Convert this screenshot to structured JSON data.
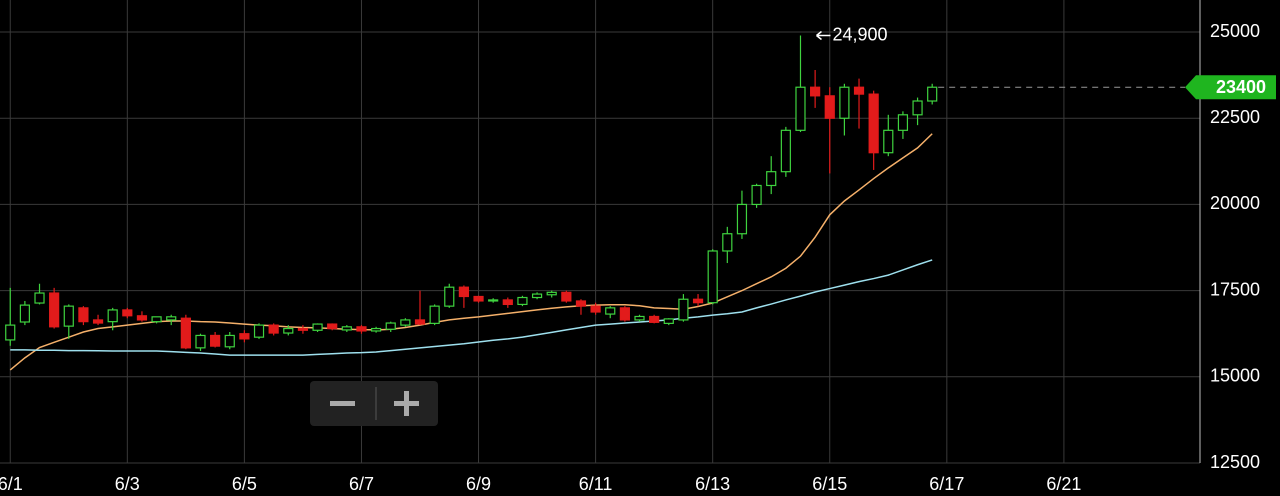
{
  "chart_data": {
    "type": "candlestick",
    "x": [
      0,
      1,
      2,
      3,
      4,
      5,
      6,
      7,
      8,
      9,
      10,
      11,
      12,
      13,
      14,
      15,
      16,
      17,
      18,
      19,
      20,
      21,
      22,
      23,
      24,
      25,
      26,
      27,
      28,
      29,
      30,
      31,
      32,
      33,
      34,
      35,
      36,
      37,
      38,
      39,
      40,
      41,
      42,
      43,
      44,
      45,
      46,
      47,
      48,
      49,
      50,
      51,
      52,
      53,
      54,
      55,
      56,
      57,
      58,
      59,
      60,
      61,
      62,
      63
    ],
    "open": [
      16070,
      16590,
      17140,
      17430,
      16470,
      17000,
      16650,
      16600,
      16940,
      16770,
      16600,
      16650,
      16700,
      15840,
      16200,
      15870,
      16250,
      16150,
      16500,
      16270,
      16400,
      16350,
      16530,
      16360,
      16450,
      16330,
      16380,
      16500,
      16650,
      16550,
      17050,
      17600,
      17330,
      17200,
      17230,
      17100,
      17300,
      17380,
      17450,
      17200,
      17050,
      16820,
      17000,
      16650,
      16750,
      16550,
      16650,
      17250,
      17150,
      18650,
      19150,
      20000,
      20550,
      20950,
      22150,
      23400,
      23150,
      22500,
      23400,
      23200,
      21500,
      22150,
      22600,
      23000
    ],
    "high": [
      17580,
      17200,
      17700,
      17580,
      17100,
      17050,
      16800,
      17000,
      17000,
      16900,
      16750,
      16800,
      16800,
      16250,
      16300,
      16300,
      16350,
      16550,
      16550,
      16500,
      16500,
      16550,
      16550,
      16500,
      16500,
      16450,
      16600,
      16700,
      17500,
      17100,
      17700,
      17650,
      17350,
      17280,
      17300,
      17350,
      17450,
      17500,
      17500,
      17250,
      17150,
      17050,
      17050,
      16800,
      16800,
      16700,
      17400,
      17400,
      18700,
      19350,
      20400,
      20600,
      21400,
      22250,
      24900,
      23900,
      23400,
      23500,
      23650,
      23300,
      22600,
      22700,
      23100,
      23500
    ],
    "low": [
      15900,
      16500,
      17100,
      16400,
      16100,
      16500,
      16500,
      16350,
      16700,
      16600,
      16550,
      16500,
      15800,
      15750,
      15850,
      15800,
      16000,
      16100,
      16200,
      16200,
      16250,
      16300,
      16350,
      16300,
      16250,
      16280,
      16300,
      16450,
      16500,
      16500,
      17000,
      17000,
      17150,
      17150,
      17000,
      17050,
      17250,
      17300,
      17150,
      16800,
      16800,
      16700,
      16600,
      16600,
      16550,
      16500,
      16600,
      17050,
      17100,
      18300,
      19000,
      19900,
      20300,
      20800,
      22100,
      22800,
      20900,
      22000,
      22200,
      21000,
      21400,
      21900,
      22300,
      22900
    ],
    "close": [
      16500,
      17080,
      17430,
      16450,
      17050,
      16600,
      16560,
      16940,
      16770,
      16650,
      16740,
      16740,
      15840,
      16200,
      15890,
      16200,
      16100,
      16500,
      16270,
      16400,
      16350,
      16530,
      16400,
      16450,
      16330,
      16400,
      16560,
      16650,
      16530,
      17050,
      17600,
      17330,
      17200,
      17230,
      17100,
      17300,
      17400,
      17450,
      17200,
      17050,
      16880,
      17000,
      16650,
      16750,
      16580,
      16680,
      17250,
      17150,
      18650,
      19150,
      20000,
      20550,
      20950,
      22150,
      23400,
      23150,
      22500,
      23400,
      23200,
      21500,
      22150,
      22600,
      23000,
      23400
    ],
    "up_color": "#3fd33f",
    "down_color": "#e21b1b",
    "lines": [
      {
        "color": "#f5b06a",
        "values": [
          15200,
          15550,
          15850,
          16000,
          16150,
          16300,
          16400,
          16450,
          16500,
          16550,
          16600,
          16620,
          16620,
          16600,
          16590,
          16560,
          16530,
          16500,
          16480,
          16450,
          16430,
          16420,
          16400,
          16380,
          16370,
          16360,
          16380,
          16430,
          16500,
          16580,
          16650,
          16700,
          16740,
          16790,
          16840,
          16890,
          16940,
          16990,
          17030,
          17060,
          17080,
          17090,
          17090,
          17060,
          17000,
          16980,
          16960,
          17040,
          17140,
          17320,
          17500,
          17700,
          17900,
          18150,
          18500,
          19050,
          19700,
          20100,
          20420,
          20750,
          21060,
          21350,
          21640,
          22050
        ]
      },
      {
        "color": "#9ee0ee",
        "values": [
          15780,
          15780,
          15770,
          15770,
          15760,
          15760,
          15755,
          15750,
          15750,
          15750,
          15750,
          15730,
          15710,
          15690,
          15660,
          15630,
          15630,
          15630,
          15630,
          15630,
          15630,
          15650,
          15670,
          15690,
          15700,
          15720,
          15760,
          15800,
          15840,
          15880,
          15920,
          15960,
          16010,
          16060,
          16100,
          16150,
          16220,
          16290,
          16360,
          16430,
          16500,
          16530,
          16560,
          16590,
          16620,
          16650,
          16700,
          16740,
          16790,
          16830,
          16880,
          17000,
          17110,
          17230,
          17340,
          17460,
          17560,
          17660,
          17760,
          17850,
          17950,
          18100,
          18250,
          18390
        ]
      }
    ],
    "xlim": [
      -0.7,
      81.3
    ],
    "xticks": [
      {
        "value": 0,
        "label": "6/1"
      },
      {
        "value": 8,
        "label": "6/3"
      },
      {
        "value": 16,
        "label": "6/5"
      },
      {
        "value": 24,
        "label": "6/7"
      },
      {
        "value": 32,
        "label": "6/9"
      },
      {
        "value": 40,
        "label": "6/11"
      },
      {
        "value": 48,
        "label": "6/13"
      },
      {
        "value": 56,
        "label": "6/15"
      },
      {
        "value": 64,
        "label": "6/17"
      },
      {
        "value": 72,
        "label": "6/21"
      }
    ],
    "ylim": [
      12500,
      25930
    ],
    "yticks": [
      12500,
      15000,
      17500,
      20000,
      22500,
      25000
    ],
    "grid": true,
    "annotation": {
      "label": "24,900",
      "value": 24900,
      "x": 54
    },
    "last_price": 23400,
    "last_price_color": "#1fb51f"
  }
}
